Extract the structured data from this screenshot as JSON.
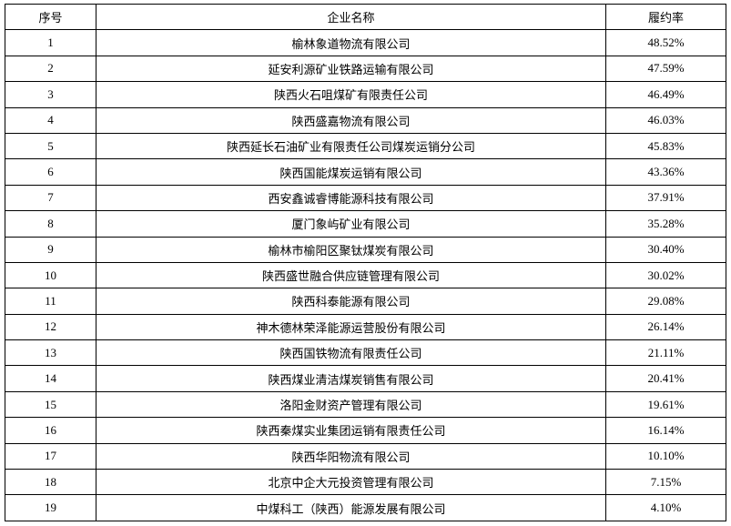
{
  "table": {
    "columns": [
      "序号",
      "企业名称",
      "履约率"
    ],
    "rows": [
      {
        "no": "1",
        "name": "榆林象道物流有限公司",
        "rate": "48.52%"
      },
      {
        "no": "2",
        "name": "延安利源矿业铁路运输有限公司",
        "rate": "47.59%"
      },
      {
        "no": "3",
        "name": "陕西火石咀煤矿有限责任公司",
        "rate": "46.49%"
      },
      {
        "no": "4",
        "name": "陕西盛嘉物流有限公司",
        "rate": "46.03%"
      },
      {
        "no": "5",
        "name": "陕西延长石油矿业有限责任公司煤炭运销分公司",
        "rate": "45.83%"
      },
      {
        "no": "6",
        "name": "陕西国能煤炭运销有限公司",
        "rate": "43.36%"
      },
      {
        "no": "7",
        "name": "西安鑫诚睿博能源科技有限公司",
        "rate": "37.91%"
      },
      {
        "no": "8",
        "name": "厦门象屿矿业有限公司",
        "rate": "35.28%"
      },
      {
        "no": "9",
        "name": "榆林市榆阳区聚钛煤炭有限公司",
        "rate": "30.40%"
      },
      {
        "no": "10",
        "name": "陕西盛世融合供应链管理有限公司",
        "rate": "30.02%"
      },
      {
        "no": "11",
        "name": "陕西科泰能源有限公司",
        "rate": "29.08%"
      },
      {
        "no": "12",
        "name": "神木德林荣泽能源运营股份有限公司",
        "rate": "26.14%"
      },
      {
        "no": "13",
        "name": "陕西国铁物流有限责任公司",
        "rate": "21.11%"
      },
      {
        "no": "14",
        "name": "陕西煤业清洁煤炭销售有限公司",
        "rate": "20.41%"
      },
      {
        "no": "15",
        "name": "洛阳金财资产管理有限公司",
        "rate": "19.61%"
      },
      {
        "no": "16",
        "name": "陕西秦煤实业集团运销有限责任公司",
        "rate": "16.14%"
      },
      {
        "no": "17",
        "name": "陕西华阳物流有限公司",
        "rate": "10.10%"
      },
      {
        "no": "18",
        "name": "北京中企大元投资管理有限公司",
        "rate": "7.15%"
      },
      {
        "no": "19",
        "name": "中煤科工（陕西）能源发展有限公司",
        "rate": "4.10%"
      }
    ]
  }
}
